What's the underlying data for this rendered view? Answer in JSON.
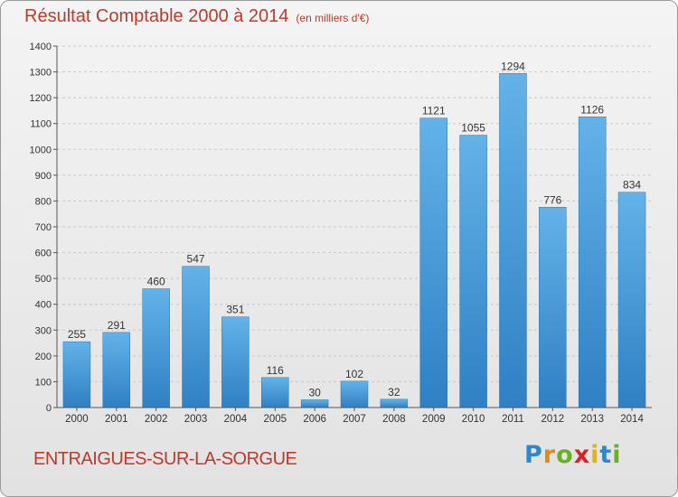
{
  "header": {
    "title": "Résultat Comptable 2000 à 2014",
    "subtitle": "(en milliers d'€)"
  },
  "footer": {
    "place": "ENTRAIGUES-SUR-LA-SORGUE",
    "logo_letters": [
      "P",
      "r",
      "o",
      "x",
      "i",
      "t",
      "i"
    ],
    "logo_colors": [
      "#2f86c8",
      "#e08a1e",
      "#6ab023",
      "#d4262a",
      "#e6b400",
      "#2f86c8",
      "#6ab023"
    ]
  },
  "colors": {
    "bar_top": "#63b2e8",
    "bar_bottom": "#2f80c4",
    "title": "#c0392b",
    "grid": "#c8c8c8",
    "axis": "#555555"
  },
  "chart_data": {
    "type": "bar",
    "categories": [
      "2000",
      "2001",
      "2002",
      "2003",
      "2004",
      "2005",
      "2006",
      "2007",
      "2008",
      "2009",
      "2010",
      "2011",
      "2012",
      "2013",
      "2014"
    ],
    "values": [
      255,
      291,
      460,
      547,
      351,
      116,
      30,
      102,
      32,
      1121,
      1055,
      1294,
      776,
      1126,
      834
    ],
    "data_labels": [
      "255",
      "291",
      "460",
      "547",
      "351",
      "116",
      "30",
      "102",
      "32",
      "1121",
      "1055",
      "1294",
      "776",
      "1126",
      "834"
    ],
    "ylim": [
      0,
      1400
    ],
    "yticks": [
      0,
      100,
      200,
      300,
      400,
      500,
      600,
      700,
      800,
      900,
      1000,
      1100,
      1200,
      1300,
      1400
    ],
    "ytick_labels": [
      "0",
      "100",
      "200",
      "300",
      "400",
      "500",
      "600",
      "700",
      "800",
      "900",
      "1000",
      "1100",
      "1200",
      "1300",
      "1400"
    ],
    "grid": true,
    "title": "Résultat Comptable 2000 à 2014",
    "xlabel": "",
    "ylabel": ""
  }
}
